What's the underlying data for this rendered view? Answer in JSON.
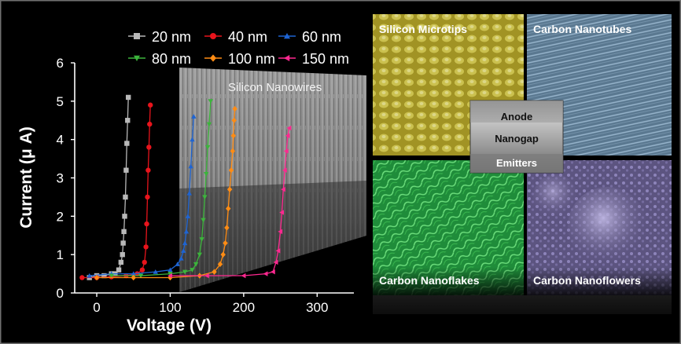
{
  "chart_data": {
    "type": "line",
    "xlabel": "Voltage (V)",
    "ylabel": "Current (μ A)",
    "xlim": [
      -30,
      350
    ],
    "ylim": [
      0,
      6
    ],
    "x_ticks": [
      "0",
      "100",
      "200",
      "300"
    ],
    "y_ticks": [
      "0",
      "1",
      "2",
      "3",
      "4",
      "5",
      "6"
    ],
    "legend_position": "top",
    "series": [
      {
        "name": "20 nm",
        "color": "#b8b8b8",
        "marker": "square",
        "x": [
          -10,
          0,
          10,
          20,
          25,
          30,
          33,
          35,
          36,
          37,
          38,
          39,
          40,
          41,
          42,
          43
        ],
        "y": [
          0.4,
          0.45,
          0.45,
          0.5,
          0.5,
          0.6,
          0.8,
          1.0,
          1.3,
          1.6,
          2.0,
          2.5,
          3.2,
          3.9,
          4.5,
          5.1
        ]
      },
      {
        "name": "40 nm",
        "color": "#e8141c",
        "marker": "circle",
        "x": [
          -20,
          0,
          20,
          40,
          55,
          62,
          65,
          67,
          68,
          69,
          70,
          71,
          72,
          73
        ],
        "y": [
          0.4,
          0.4,
          0.42,
          0.45,
          0.5,
          0.6,
          0.8,
          1.2,
          1.8,
          2.5,
          3.2,
          3.8,
          4.4,
          4.9
        ]
      },
      {
        "name": "60 nm",
        "color": "#1e64d2",
        "marker": "triangle-up",
        "x": [
          -10,
          20,
          50,
          80,
          100,
          110,
          115,
          118,
          120,
          122,
          124,
          126,
          128,
          130,
          132
        ],
        "y": [
          0.45,
          0.5,
          0.5,
          0.55,
          0.6,
          0.75,
          0.9,
          1.1,
          1.3,
          1.6,
          2.0,
          2.6,
          3.3,
          4.0,
          4.6
        ]
      },
      {
        "name": "80 nm",
        "color": "#3cb43c",
        "marker": "triangle-down",
        "x": [
          20,
          60,
          100,
          120,
          130,
          135,
          140,
          143,
          145,
          147,
          149,
          151,
          153,
          155
        ],
        "y": [
          0.45,
          0.45,
          0.5,
          0.55,
          0.6,
          0.75,
          1.0,
          1.4,
          1.9,
          2.5,
          3.1,
          3.8,
          4.4,
          5.0
        ]
      },
      {
        "name": "100 nm",
        "color": "#ff8c14",
        "marker": "diamond",
        "x": [
          0,
          50,
          100,
          140,
          160,
          168,
          172,
          175,
          177,
          179,
          181,
          183,
          185,
          186,
          187,
          188
        ],
        "y": [
          0.4,
          0.4,
          0.4,
          0.45,
          0.55,
          0.75,
          1.0,
          1.3,
          1.7,
          2.2,
          2.7,
          3.2,
          3.7,
          4.1,
          4.5,
          4.8
        ]
      },
      {
        "name": "150 nm",
        "color": "#ff2890",
        "marker": "triangle-left",
        "x": [
          100,
          150,
          200,
          230,
          240,
          244,
          247,
          250,
          252,
          254,
          256,
          258,
          260,
          262
        ],
        "y": [
          0.45,
          0.45,
          0.45,
          0.5,
          0.55,
          0.8,
          1.1,
          1.6,
          2.1,
          2.7,
          3.2,
          3.7,
          4.1,
          4.3
        ]
      }
    ]
  },
  "images": {
    "nanowires_label": "Silicon Nanowires",
    "microtips_label": "Silicon Microtips",
    "nanotubes_label": "Carbon Nanotubes",
    "nanoflakes_label": "Carbon Nanoflakes",
    "nanoflowers_label": "Carbon Nanoflowers",
    "anode_label": "Anode",
    "nanogap_label": "Nanogap",
    "emitters_label": "Emitters"
  }
}
